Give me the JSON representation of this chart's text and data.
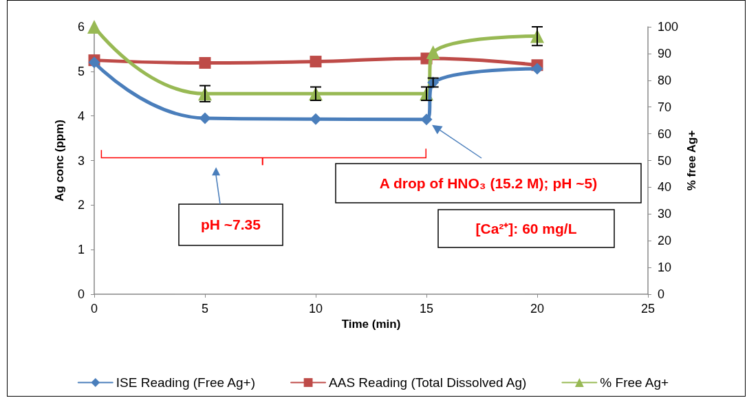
{
  "chart_data": {
    "type": "line",
    "xlabel": "Time (min)",
    "ylabel": "Ag conc (ppm)",
    "y2label": "% free Ag+",
    "xlim": [
      0,
      25
    ],
    "xticks": [
      0,
      5,
      10,
      15,
      20,
      25
    ],
    "ylim": [
      0,
      6
    ],
    "yticks": [
      0,
      1,
      2,
      3,
      4,
      5,
      6
    ],
    "y2lim": [
      0,
      100
    ],
    "y2ticks": [
      0,
      10,
      20,
      30,
      40,
      50,
      60,
      70,
      80,
      90,
      100
    ],
    "series": [
      {
        "name": "ISE Reading (Free Ag+)",
        "color": "#4a7ebb",
        "marker": "diamond",
        "x": [
          0,
          5,
          10,
          15,
          15.3,
          20
        ],
        "values": [
          5.2,
          3.95,
          3.93,
          3.92,
          4.75,
          5.06
        ],
        "errors": [
          null,
          null,
          null,
          null,
          0.1,
          null
        ]
      },
      {
        "name": "AAS Reading (Total Dissolved Ag)",
        "color": "#be4b48",
        "marker": "square",
        "x": [
          0,
          5,
          10,
          15,
          20
        ],
        "values": [
          5.25,
          5.19,
          5.22,
          5.29,
          5.14
        ]
      },
      {
        "name": "% Free Ag+",
        "color": "#98b954",
        "marker": "triangle",
        "axis": "y2",
        "x": [
          0,
          5,
          10,
          15,
          15.3,
          20
        ],
        "values": [
          100,
          75,
          75,
          75,
          90.5,
          96.5
        ],
        "errors": [
          null,
          3,
          2.5,
          2.5,
          null,
          3.5
        ]
      }
    ],
    "annotations": [
      "pH ~7.35",
      "A drop of HNO₃ (15.2 M); pH ~5)",
      "[Ca²⁺]: 60 mg/L"
    ],
    "grid": false,
    "legend": "bottom"
  }
}
